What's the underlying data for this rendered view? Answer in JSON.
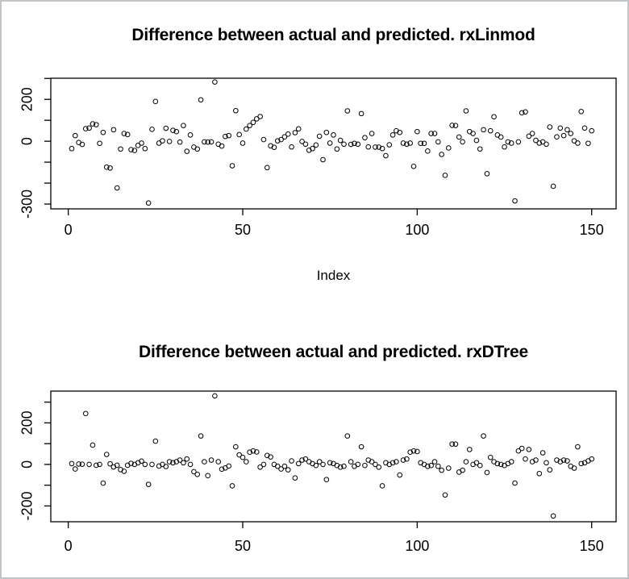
{
  "figure": {
    "background": "#ffffff",
    "frame_color": "#c2c5c8",
    "draw_color": "#000000"
  },
  "chart_data": [
    {
      "type": "scatter",
      "title": "Difference between actual and predicted. rxLinmod",
      "xlabel": "Index",
      "ylabel": "",
      "marker": "open-circle",
      "marker_color": "#000000",
      "grid": false,
      "legend": "none",
      "x_start": 1,
      "xlim": [
        -5,
        157
      ],
      "ylim": [
        -323,
        301
      ],
      "x_ticks": [
        0,
        50,
        100,
        150
      ],
      "y_ticks": [
        {
          "value": 300,
          "label": ""
        },
        {
          "value": 200,
          "label": "200"
        },
        {
          "value": 100,
          "label": ""
        },
        {
          "value": 0,
          "label": "0"
        },
        {
          "value": -100,
          "label": ""
        },
        {
          "value": -200,
          "label": ""
        },
        {
          "value": -300,
          "label": "-300"
        }
      ],
      "values": [
        -35,
        27,
        -6,
        -15,
        60,
        63,
        83,
        79,
        -10,
        42,
        -124,
        -128,
        55,
        -223,
        -37,
        37,
        32,
        -40,
        -44,
        -20,
        -9,
        -35,
        -295,
        57,
        190,
        -9,
        2,
        62,
        -1,
        52,
        46,
        -4,
        75,
        -48,
        30,
        -28,
        -37,
        198,
        -3,
        -4,
        -3,
        283,
        -14,
        -23,
        23,
        27,
        -117,
        146,
        32,
        -9,
        58,
        75,
        90,
        107,
        118,
        8,
        -126,
        -22,
        -29,
        2,
        8,
        21,
        34,
        -27,
        41,
        59,
        -1,
        -14,
        -43,
        -35,
        -18,
        24,
        -88,
        42,
        -9,
        30,
        -37,
        4,
        -14,
        145,
        -15,
        -10,
        -14,
        132,
        17,
        -27,
        37,
        -28,
        -28,
        -35,
        -69,
        -17,
        30,
        50,
        42,
        -9,
        -14,
        -9,
        -120,
        46,
        -10,
        -10,
        -47,
        37,
        37,
        -3,
        -63,
        -163,
        -32,
        76,
        75,
        20,
        -3,
        145,
        46,
        37,
        4,
        -37,
        55,
        -155,
        50,
        117,
        30,
        20,
        -27,
        -3,
        -9,
        -285,
        -3,
        136,
        140,
        24,
        37,
        4,
        -9,
        -3,
        -14,
        68,
        -215,
        21,
        63,
        27,
        55,
        37,
        2,
        -9,
        142,
        63,
        -10,
        50
      ]
    },
    {
      "type": "scatter",
      "title": "Difference between actual and predicted. rxDTree",
      "xlabel": "",
      "ylabel": "",
      "marker": "open-circle",
      "marker_color": "#000000",
      "grid": false,
      "legend": "none",
      "x_start": 1,
      "xlim": [
        -5,
        157
      ],
      "ylim": [
        -276,
        353
      ],
      "x_ticks": [
        0,
        50,
        100,
        150
      ],
      "y_ticks": [
        {
          "value": 300,
          "label": ""
        },
        {
          "value": 200,
          "label": "200"
        },
        {
          "value": 100,
          "label": ""
        },
        {
          "value": 0,
          "label": "0"
        },
        {
          "value": -100,
          "label": ""
        },
        {
          "value": -200,
          "label": "-200"
        }
      ],
      "values": [
        4,
        -22,
        2,
        1,
        245,
        0,
        93,
        -4,
        0,
        -90,
        48,
        3,
        -12,
        -4,
        -25,
        -33,
        -4,
        5,
        0,
        8,
        16,
        0,
        -96,
        0,
        112,
        -8,
        0,
        -10,
        13,
        8,
        13,
        21,
        8,
        26,
        0,
        -35,
        -48,
        137,
        13,
        -54,
        21,
        330,
        13,
        -23,
        -17,
        -8,
        -103,
        85,
        46,
        34,
        13,
        59,
        65,
        60,
        -13,
        0,
        43,
        36,
        0,
        -9,
        -22,
        -9,
        -26,
        17,
        -65,
        4,
        21,
        26,
        13,
        4,
        -5,
        13,
        0,
        -73,
        8,
        4,
        -5,
        -13,
        -9,
        137,
        13,
        -9,
        0,
        85,
        -5,
        21,
        13,
        0,
        -13,
        -103,
        8,
        0,
        8,
        13,
        -51,
        21,
        26,
        59,
        65,
        62,
        8,
        0,
        -9,
        -5,
        13,
        -9,
        -28,
        -147,
        -18,
        98,
        98,
        -37,
        -28,
        13,
        72,
        0,
        8,
        -5,
        137,
        -39,
        34,
        13,
        4,
        0,
        -5,
        4,
        13,
        -90,
        65,
        77,
        26,
        72,
        13,
        21,
        -44,
        56,
        8,
        -26,
        -248,
        21,
        13,
        21,
        17,
        -9,
        -18,
        85,
        4,
        8,
        17,
        26
      ]
    }
  ]
}
